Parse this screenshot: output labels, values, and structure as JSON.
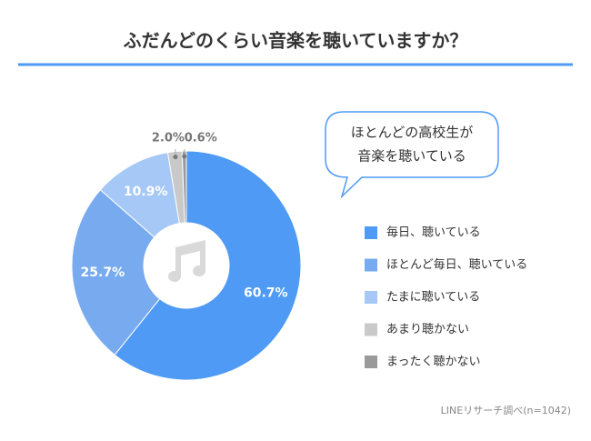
{
  "chart_data": {
    "type": "donut",
    "title": "ふだんどのくらい音楽を聴いていますか？",
    "categories": [
      "毎日、聴いている",
      "ほとんど毎日、聴いている",
      "たまに聴いている",
      "あまり聴かない",
      "まったく聴かない"
    ],
    "values": [
      60.7,
      25.7,
      10.9,
      2.0,
      0.6
    ],
    "value_labels": [
      "60.7%",
      "25.7%",
      "10.9%",
      "2.0%",
      "0.6%"
    ],
    "colors": [
      "#4e9af5",
      "#78aaf0",
      "#a6c8f6",
      "#c9c9c9",
      "#9a9a9a"
    ],
    "annotation": [
      "ほとんどの高校生が",
      "音楽を聴いている"
    ],
    "source": "LINEリサーチ調べ(n=1042)"
  }
}
